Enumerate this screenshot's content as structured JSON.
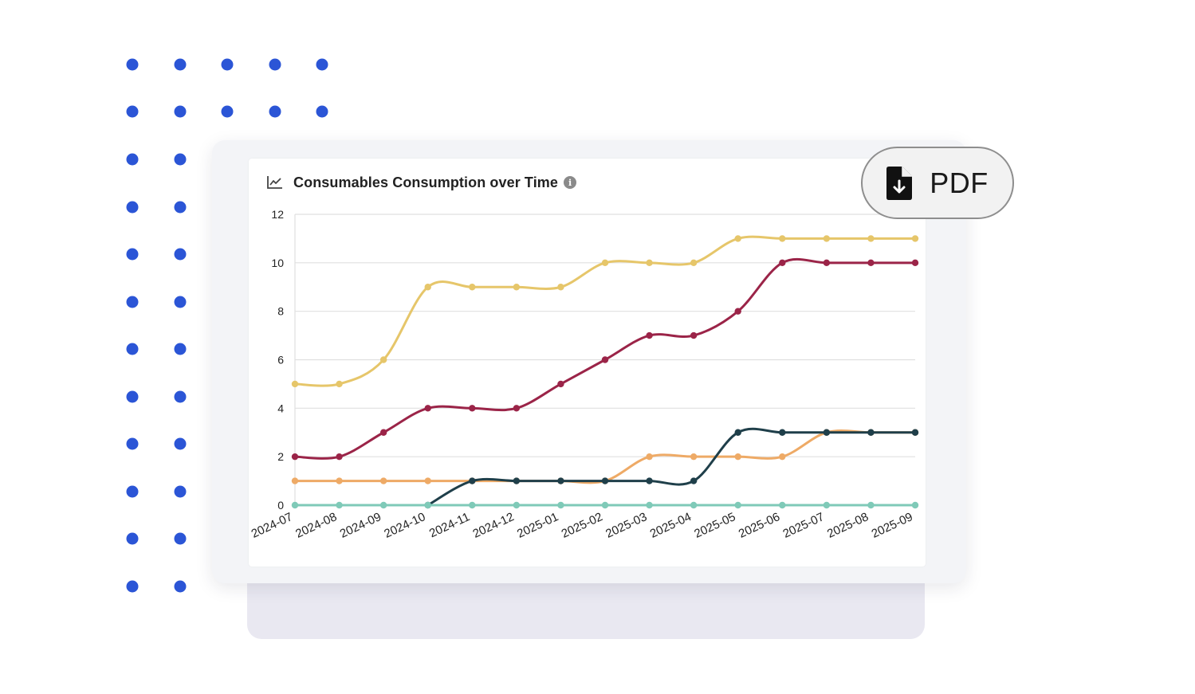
{
  "header": {
    "title": "Consumables Consumption over Time",
    "info_glyph": "i"
  },
  "actions": {
    "pdf_label": "PDF"
  },
  "icons": {
    "chart": "line-chart-icon",
    "info": "info-icon",
    "pdf": "file-download-icon"
  },
  "colors": {
    "dots": "#2b55d6",
    "grid": "#e0e0e0",
    "axis_text": "#222222"
  },
  "chart_data": {
    "type": "line",
    "title": "Consumables Consumption over Time",
    "xlabel": "",
    "ylabel": "",
    "ylim": [
      0,
      12
    ],
    "yticks": [
      0,
      2,
      4,
      6,
      8,
      10,
      12
    ],
    "grid": true,
    "legend": "none",
    "x": [
      "2024-07",
      "2024-08",
      "2024-09",
      "2024-10",
      "2024-11",
      "2024-12",
      "2025-01",
      "2025-02",
      "2025-03",
      "2025-04",
      "2025-05",
      "2025-06",
      "2025-07",
      "2025-08",
      "2025-09"
    ],
    "series": [
      {
        "color": "#e6c66a",
        "values": [
          5,
          5,
          6,
          9,
          9,
          9,
          9,
          10,
          10,
          10,
          11,
          11,
          11,
          11,
          11
        ]
      },
      {
        "color": "#9b2448",
        "values": [
          2,
          2,
          3,
          4,
          4,
          4,
          5,
          6,
          7,
          7,
          8,
          10,
          10,
          10,
          10
        ]
      },
      {
        "color": "#eeaa66",
        "values": [
          1,
          1,
          1,
          1,
          1,
          1,
          1,
          1,
          2,
          2,
          2,
          2,
          3,
          3,
          3
        ]
      },
      {
        "color": "#1f3f4a",
        "values": [
          null,
          null,
          null,
          0,
          1,
          1,
          1,
          1,
          1,
          1,
          3,
          3,
          3,
          3,
          3
        ]
      },
      {
        "color": "#7fcab8",
        "values": [
          0,
          0,
          0,
          0,
          0,
          0,
          0,
          0,
          0,
          0,
          0,
          0,
          0,
          0,
          0
        ]
      }
    ]
  }
}
